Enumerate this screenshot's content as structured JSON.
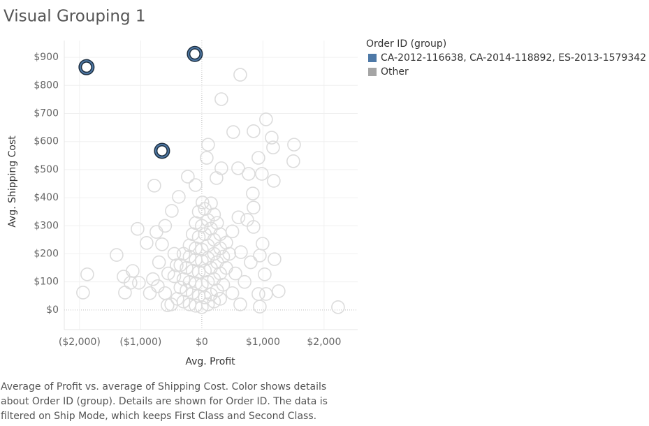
{
  "chart_data": {
    "type": "scatter",
    "title": "Visual Grouping 1",
    "x_label": "Avg. Profit",
    "y_label": "Avg. Shipping Cost",
    "legend_title": "Order ID (group)",
    "legend_position": "right",
    "grid": true,
    "xlim": [
      -2250,
      2550
    ],
    "ylim": [
      -70,
      960
    ],
    "xticks": [
      {
        "value": -2000,
        "label": "($2,000)"
      },
      {
        "value": -1000,
        "label": "($1,000)"
      },
      {
        "value": 0,
        "label": "$0"
      },
      {
        "value": 1000,
        "label": "$1,000"
      },
      {
        "value": 2000,
        "label": "$2,000"
      }
    ],
    "yticks": [
      {
        "value": 0,
        "label": "$0"
      },
      {
        "value": 100,
        "label": "$100"
      },
      {
        "value": 200,
        "label": "$200"
      },
      {
        "value": 300,
        "label": "$300"
      },
      {
        "value": 400,
        "label": "$400"
      },
      {
        "value": 500,
        "label": "$500"
      },
      {
        "value": 600,
        "label": "$600"
      },
      {
        "value": 700,
        "label": "$700"
      },
      {
        "value": 800,
        "label": "$800"
      },
      {
        "value": 900,
        "label": "$900"
      }
    ],
    "series": [
      {
        "name": "CA-2012-116638, CA-2014-118892, ES-2013-1579342",
        "color": "#4e79a7",
        "x": [
          -1886,
          -114,
          -651
        ],
        "values": [
          865,
          912,
          567
        ]
      },
      {
        "name": "Other",
        "color": "#a5a5a5",
        "x": [
          629,
          320,
          1051,
          846,
          514,
          1143,
          1166,
          1509,
          1497,
          103,
          80,
          926,
          594,
          320,
          766,
          983,
          1177,
          -229,
          -777,
          240,
          -491,
          -1051,
          -743,
          -903,
          -1394,
          -1874,
          -1943,
          -1257,
          -1131,
          -1029,
          -1166,
          -1280,
          2229,
          1257,
          1051,
          926,
          949,
          629,
          1029,
          1189,
          994,
          949,
          846,
          846,
          834,
          743,
          640,
          -720,
          -560,
          -411,
          -651,
          -377,
          -103,
          11,
          -400,
          -300,
          -200,
          -100,
          0,
          100,
          200,
          300,
          -350,
          -250,
          -150,
          -50,
          50,
          150,
          250,
          350,
          -450,
          -300,
          -200,
          -100,
          0,
          100,
          200,
          300,
          400,
          -350,
          -250,
          -150,
          -50,
          50,
          150,
          250,
          350,
          -300,
          -200,
          -100,
          0,
          100,
          200,
          300,
          400,
          -200,
          -100,
          0,
          100,
          200,
          300,
          -150,
          -50,
          50,
          150,
          250,
          -100,
          0,
          100,
          200,
          -50,
          50,
          150,
          -450,
          -550,
          -600,
          -500,
          500,
          550,
          450,
          500,
          600,
          -600,
          -700,
          -800,
          -850,
          700,
          800
        ],
        "values": [
          838,
          751,
          679,
          637,
          634,
          614,
          579,
          589,
          530,
          589,
          542,
          542,
          505,
          505,
          485,
          485,
          460,
          475,
          443,
          470,
          353,
          289,
          278,
          239,
          196,
          127,
          62,
          62,
          139,
          97,
          97,
          119,
          10,
          67,
          57,
          57,
          12,
          20,
          127,
          181,
          236,
          194,
          296,
          365,
          415,
          321,
          206,
          85,
          17,
          159,
          234,
          403,
          445,
          383,
          40,
          30,
          20,
          15,
          10,
          20,
          30,
          40,
          80,
          70,
          60,
          50,
          45,
          55,
          70,
          90,
          120,
          110,
          100,
          95,
          90,
          100,
          110,
          130,
          150,
          160,
          150,
          140,
          135,
          140,
          150,
          170,
          190,
          200,
          190,
          180,
          175,
          185,
          200,
          220,
          240,
          230,
          220,
          215,
          230,
          250,
          270,
          270,
          260,
          270,
          290,
          310,
          310,
          300,
          320,
          340,
          350,
          360,
          380,
          200,
          130,
          60,
          20,
          60,
          130,
          200,
          280,
          330,
          300,
          170,
          110,
          60,
          100,
          170
        ]
      }
    ],
    "caption": [
      "Average of Profit vs. average of Shipping Cost.  Color shows details",
      "about Order ID (group).  Details are shown for Order ID. The data is",
      "filtered on Ship Mode, which keeps First Class and Second Class."
    ]
  }
}
